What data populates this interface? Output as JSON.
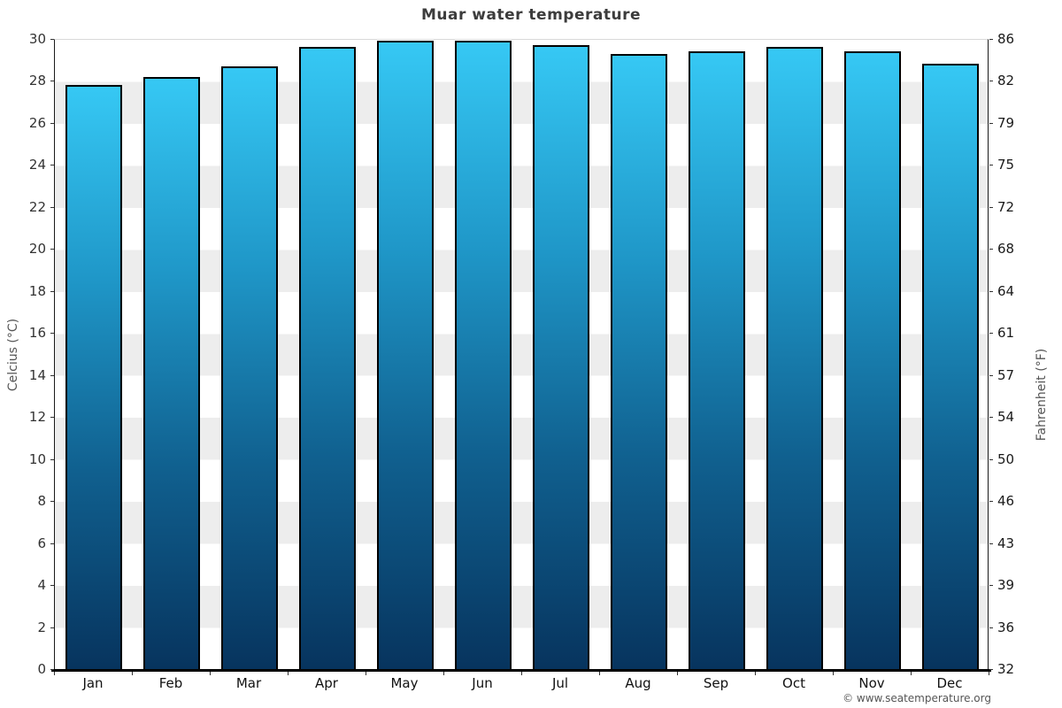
{
  "chart_data": {
    "type": "bar",
    "title": "Muar water temperature",
    "categories": [
      "Jan",
      "Feb",
      "Mar",
      "Apr",
      "May",
      "Jun",
      "Jul",
      "Aug",
      "Sep",
      "Oct",
      "Nov",
      "Dec"
    ],
    "values": [
      27.8,
      28.2,
      28.7,
      29.6,
      29.9,
      29.9,
      29.7,
      29.3,
      29.4,
      29.6,
      29.4,
      28.8
    ],
    "value_unit": "°C",
    "ylabel_left": "Celcius (°C)",
    "ylabel_right": "Fahrenheit (°F)",
    "ylim": [
      0,
      30
    ],
    "y_ticks_celsius": [
      0,
      2,
      4,
      6,
      8,
      10,
      12,
      14,
      16,
      18,
      20,
      22,
      24,
      26,
      28,
      30
    ],
    "y_ticks_fahrenheit": [
      32,
      36,
      39,
      43,
      46,
      50,
      54,
      57,
      61,
      64,
      68,
      72,
      75,
      79,
      82,
      86
    ],
    "grid": "striped-bands",
    "legend": "none",
    "colors": {
      "bar_gradient_top": "#36c8f4",
      "bar_gradient_upper_mid": "#1f97c8",
      "bar_gradient_lower_mid": "#10608f",
      "bar_gradient_bottom": "#07345e",
      "bar_border": "#000000",
      "band_light": "#ffffff",
      "band_dark": "#ededed",
      "axis_line": "#000000",
      "title_text": "#3c3c3c",
      "tick_text": "#333333",
      "axis_title_text": "#555555"
    },
    "copyright": "© www.seatemperature.org"
  }
}
